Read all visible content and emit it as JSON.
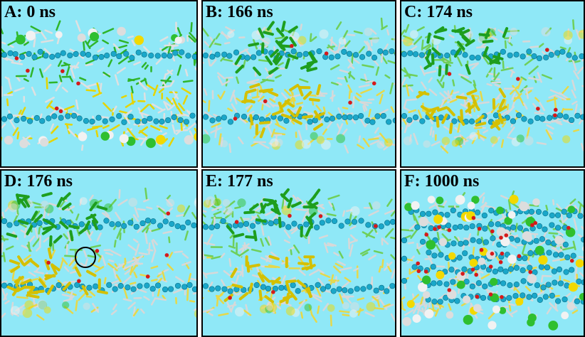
{
  "panels": [
    {
      "label": "A: 0 ns"
    },
    {
      "label": "B: 166 ns"
    },
    {
      "label": "C: 174 ns"
    },
    {
      "label": "D: 176 ns"
    },
    {
      "label": "E: 177 ns"
    },
    {
      "label": "F: 1000 ns"
    }
  ]
}
